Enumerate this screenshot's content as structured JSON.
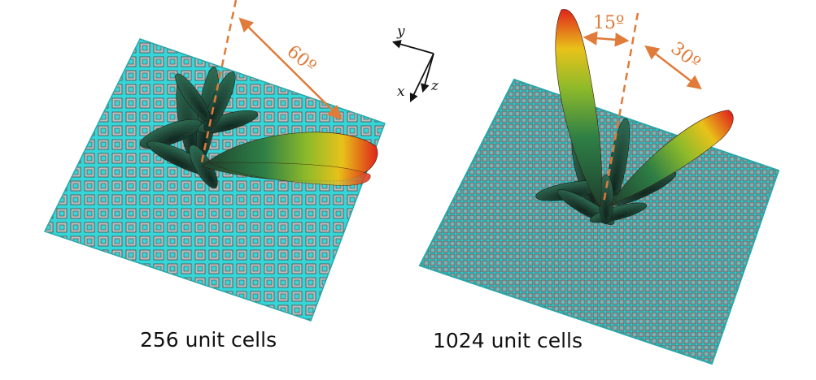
{
  "captions": {
    "left": "256 unit cells",
    "right": "1024 unit cells"
  },
  "angles": {
    "left_tilt": "60º",
    "right_tilt_1": "15º",
    "right_tilt_2": "30º"
  },
  "axes": {
    "x": "x",
    "y": "y",
    "z": "z"
  },
  "colors": {
    "surface": "#35D6D8",
    "cell": "#B9B9B9",
    "guide": "#E07B39",
    "beam_tip": "#E0231B",
    "beam_mid": "#E8C21A",
    "beam_base": "#1E3F2E"
  }
}
